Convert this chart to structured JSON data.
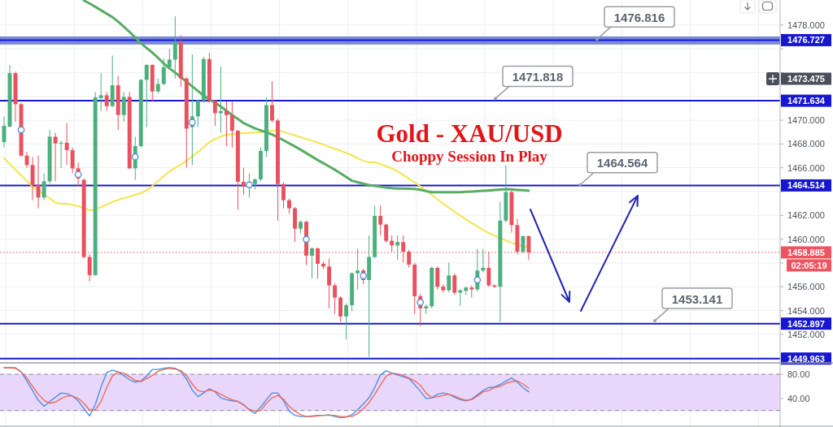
{
  "chart_data": [
    {
      "type": "candlestick",
      "title": "Gold - XAU/USD",
      "subtitle": "Choppy Session In Play",
      "categories": [
        null,
        null,
        null,
        null,
        null,
        null,
        null,
        null,
        null,
        null,
        null,
        null,
        null,
        null,
        null,
        null,
        null,
        null,
        null,
        null,
        null,
        null,
        null,
        null,
        null,
        null,
        null,
        null,
        null,
        null,
        null,
        null,
        null,
        null,
        null,
        null,
        null,
        null,
        null,
        null,
        null,
        null,
        null,
        null,
        null,
        null,
        null,
        null,
        null,
        null,
        null,
        null,
        null,
        null,
        null,
        null,
        null,
        null,
        null,
        null,
        null,
        null,
        null,
        null,
        null,
        null,
        null,
        null,
        null,
        null,
        null,
        null,
        null,
        null,
        null,
        null,
        null,
        null,
        null,
        null,
        null,
        null,
        null,
        null,
        null,
        null,
        null,
        null,
        null,
        null,
        null,
        null,
        null
      ],
      "ohlc": [
        [
          1468.16,
          1470.32,
          1467.7,
          1469.52
        ],
        [
          1469.45,
          1474.64,
          1469.41,
          1473.95
        ],
        [
          1473.95,
          1474.07,
          1469.86,
          1471.34
        ],
        [
          1471.34,
          1471.45,
          1466.91,
          1467.02
        ],
        [
          1467.02,
          1467.36,
          1466.0,
          1466.23
        ],
        [
          1466.23,
          1466.91,
          1463.27,
          1464.57
        ],
        [
          1464.57,
          1467.02,
          1462.59,
          1463.5
        ],
        [
          1463.5,
          1465.54,
          1463.27,
          1464.86
        ],
        [
          1464.86,
          1469.18,
          1464.64,
          1468.61
        ],
        [
          1468.61,
          1468.95,
          1464.86,
          1468.04
        ],
        [
          1468.04,
          1468.27,
          1466.0,
          1468.1
        ],
        [
          1468.1,
          1469.75,
          1466.23,
          1467.48
        ],
        [
          1467.48,
          1467.7,
          1465.54,
          1465.95
        ],
        [
          1465.95,
          1466.45,
          1464.41,
          1465.09
        ],
        [
          1464.98,
          1465.09,
          1458.39,
          1458.5
        ],
        [
          1458.5,
          1458.73,
          1456.45,
          1456.98
        ],
        [
          1456.98,
          1472.36,
          1456.91,
          1471.91
        ],
        [
          1471.86,
          1473.95,
          1470.77,
          1472.09
        ],
        [
          1472.09,
          1472.36,
          1470.77,
          1471.18
        ],
        [
          1471.18,
          1475.43,
          1471.11,
          1472.93
        ],
        [
          1472.93,
          1473.73,
          1469.18,
          1470.43
        ],
        [
          1470.43,
          1472.36,
          1469.86,
          1471.95
        ],
        [
          1471.95,
          1472.36,
          1465.9,
          1465.95
        ],
        [
          1465.95,
          1468.61,
          1464.98,
          1467.82
        ],
        [
          1467.82,
          1473.45,
          1467.7,
          1473.39
        ],
        [
          1473.39,
          1474.7,
          1469.41,
          1474.64
        ],
        [
          1474.64,
          1474.7,
          1471.57,
          1472.41
        ],
        [
          1472.41,
          1473.5,
          1472.25,
          1473.04
        ],
        [
          1473.04,
          1475.2,
          1472.93,
          1474.45
        ],
        [
          1474.45,
          1476.0,
          1474.41,
          1475.09
        ],
        [
          1475.09,
          1478.73,
          1473.5,
          1476.57
        ],
        [
          1476.57,
          1477.14,
          1472.82,
          1473.5
        ],
        [
          1473.5,
          1473.61,
          1466.0,
          1469.29
        ],
        [
          1469.41,
          1475.54,
          1466.23,
          1470.32
        ],
        [
          1470.32,
          1471.7,
          1469.41,
          1471.64
        ],
        [
          1471.64,
          1475.32,
          1471.45,
          1475.14
        ],
        [
          1475.14,
          1475.66,
          1471.45,
          1471.64
        ],
        [
          1471.64,
          1471.68,
          1469.52,
          1470.59
        ],
        [
          1470.59,
          1474.52,
          1468.95,
          1470.77
        ],
        [
          1470.77,
          1471.57,
          1467.82,
          1470.43
        ],
        [
          1470.43,
          1471.57,
          1467.7,
          1469.11
        ],
        [
          1469.11,
          1469.18,
          1462.48,
          1464.82
        ],
        [
          1464.82,
          1466.0,
          1463.73,
          1464.41
        ],
        [
          1464.41,
          1465.54,
          1463.5,
          1464.5
        ],
        [
          1464.64,
          1465.1,
          1464.18,
          1465.02
        ],
        [
          1465.02,
          1467.7,
          1464.86,
          1467.41
        ],
        [
          1467.41,
          1471.91,
          1466.9,
          1471.27
        ],
        [
          1471.27,
          1473.27,
          1469.8,
          1469.97
        ],
        [
          1469.97,
          1470.1,
          1461.56,
          1464.63
        ],
        [
          1464.63,
          1464.75,
          1462.59,
          1463.27
        ],
        [
          1463.27,
          1463.4,
          1462.13,
          1462.59
        ],
        [
          1462.59,
          1462.7,
          1459.75,
          1460.88
        ],
        [
          1460.88,
          1461.56,
          1460.5,
          1461.45
        ],
        [
          1461.45,
          1461.56,
          1457.81,
          1458.61
        ],
        [
          1458.61,
          1459.3,
          1456.68,
          1459.22
        ],
        [
          1459.22,
          1459.3,
          1456.68,
          1457.93
        ],
        [
          1457.93,
          1458.1,
          1457.5,
          1457.7
        ],
        [
          1457.7,
          1458.38,
          1454.18,
          1456.11
        ],
        [
          1456.11,
          1456.3,
          1453.72,
          1455.09
        ],
        [
          1455.09,
          1455.2,
          1453.04,
          1453.5
        ],
        [
          1453.5,
          1454.6,
          1451.56,
          1454.45
        ],
        [
          1454.45,
          1457.2,
          1453.95,
          1457.13
        ],
        [
          1457.13,
          1459.18,
          1455.77,
          1457.36
        ],
        [
          1457.36,
          1457.5,
          1456.22,
          1456.56
        ],
        [
          1456.56,
          1460.31,
          1450.09,
          1458.5
        ],
        [
          1458.5,
          1462.81,
          1458.4,
          1461.95
        ],
        [
          1461.95,
          1462.81,
          1460.31,
          1461.22
        ],
        [
          1461.22,
          1461.3,
          1459.7,
          1459.86
        ],
        [
          1459.86,
          1460.31,
          1458.95,
          1459.47
        ],
        [
          1459.47,
          1460.31,
          1458.27,
          1459.75
        ],
        [
          1459.75,
          1460.31,
          1458.04,
          1458.95
        ],
        [
          1458.95,
          1459.1,
          1457.59,
          1457.86
        ],
        [
          1457.86,
          1458.0,
          1453.72,
          1455.2
        ],
        [
          1455.2,
          1455.4,
          1452.7,
          1454.18
        ],
        [
          1454.18,
          1454.5,
          1453.72,
          1454.36
        ],
        [
          1454.36,
          1457.7,
          1454.2,
          1457.59
        ],
        [
          1457.59,
          1457.7,
          1455.77,
          1456.0
        ],
        [
          1456.0,
          1456.2,
          1455.5,
          1455.7
        ],
        [
          1455.7,
          1458.04,
          1455.54,
          1456.95
        ],
        [
          1456.95,
          1457.1,
          1455.31,
          1455.5
        ],
        [
          1455.5,
          1455.8,
          1454.4,
          1455.7
        ],
        [
          1455.65,
          1456.0,
          1455.3,
          1455.93
        ],
        [
          1455.93,
          1456.1,
          1455.09,
          1455.77
        ],
        [
          1455.77,
          1459.18,
          1455.6,
          1457.36
        ],
        [
          1457.36,
          1459.18,
          1457.2,
          1457.59
        ],
        [
          1457.59,
          1458.95,
          1456.0,
          1456.11
        ],
        [
          1456.11,
          1456.2,
          1455.9,
          1456.0
        ],
        [
          1456.0,
          1463.15,
          1453.04,
          1461.56
        ],
        [
          1461.56,
          1466.22,
          1461.4,
          1463.95
        ],
        [
          1463.95,
          1464.1,
          1460.54,
          1461.18
        ],
        [
          1461.18,
          1461.7,
          1458.72,
          1458.95
        ],
        [
          1458.95,
          1460.3,
          1458.8,
          1460.25
        ],
        [
          1460.25,
          1460.3,
          1458.27,
          1458.885
        ]
      ],
      "colors": [
        "#4caf7e",
        "#4caf7e",
        "#e8515d",
        "#e8515d",
        "#e8515d",
        "#e8515d",
        "#e8515d",
        "#4caf7e",
        "#4caf7e",
        "#e8515d",
        "#4caf7e",
        "#e8515d",
        "#e8515d",
        "#e8515d",
        "#e8515d",
        "#e8515d",
        "#4caf7e",
        "#4caf7e",
        "#e8515d",
        "#4caf7e",
        "#e8515d",
        "#4caf7e",
        "#e8515d",
        "#4caf7e",
        "#4caf7e",
        "#4caf7e",
        "#e8515d",
        "#4caf7e",
        "#4caf7e",
        "#4caf7e",
        "#4caf7e",
        "#e8515d",
        "#e8515d",
        "#4caf7e",
        "#4caf7e",
        "#4caf7e",
        "#e8515d",
        "#e8515d",
        "#4caf7e",
        "#e8515d",
        "#e8515d",
        "#e8515d",
        "#e8515d",
        "#4caf7e",
        "#4caf7e",
        "#4caf7e",
        "#4caf7e",
        "#e8515d",
        "#e8515d",
        "#e8515d",
        "#e8515d",
        "#e8515d",
        "#4caf7e",
        "#e8515d",
        "#4caf7e",
        "#e8515d",
        "#e8515d",
        "#e8515d",
        "#e8515d",
        "#e8515d",
        "#4caf7e",
        "#4caf7e",
        "#4caf7e",
        "#e8515d",
        "#4caf7e",
        "#4caf7e",
        "#e8515d",
        "#e8515d",
        "#e8515d",
        "#4caf7e",
        "#e8515d",
        "#e8515d",
        "#e8515d",
        "#e8515d",
        "#4caf7e",
        "#4caf7e",
        "#e8515d",
        "#e8515d",
        "#4caf7e",
        "#e8515d",
        "#4caf7e",
        "#4caf7e",
        "#e8515d",
        "#4caf7e",
        "#4caf7e",
        "#e8515d",
        "#e8515d",
        "#4caf7e",
        "#4caf7e",
        "#e8515d",
        "#e8515d",
        "#4caf7e",
        "#e8515d"
      ],
      "series": [
        {
          "type": "line",
          "color": "#f2e64a",
          "values": [
            1466.8,
            1466.32,
            1465.84,
            1465.36,
            1464.89,
            1464.41,
            1464.09,
            1463.77,
            1463.43,
            1463.08,
            1462.98,
            1462.98,
            1462.88,
            1462.77,
            1462.62,
            1462.42,
            1462.5,
            1462.7,
            1462.92,
            1463.13,
            1463.3,
            1463.44,
            1463.58,
            1463.72,
            1463.86,
            1464.11,
            1464.48,
            1464.88,
            1465.3,
            1465.69,
            1465.98,
            1466.27,
            1466.58,
            1466.95,
            1467.33,
            1467.74,
            1468.15,
            1468.42,
            1468.62,
            1468.79,
            1468.83,
            1468.87,
            1468.91,
            1468.93,
            1468.96,
            1468.98,
            1469.06,
            1469.12,
            1469.15,
            1469.02,
            1468.87,
            1468.72,
            1468.57,
            1468.42,
            1468.27,
            1468.11,
            1467.95,
            1467.77,
            1467.6,
            1467.43,
            1467.25,
            1467.05,
            1466.81,
            1466.58,
            1466.46,
            1466.46,
            1466.33,
            1466.13,
            1465.93,
            1465.7,
            1465.39,
            1465.08,
            1464.77,
            1464.43,
            1464.08,
            1463.72,
            1463.35,
            1462.99,
            1462.64,
            1462.29,
            1461.98,
            1461.67,
            1461.36,
            1461.07,
            1460.78,
            1460.5,
            1460.3,
            1460.09,
            1459.88,
            1459.71,
            1459.54,
            1459.4,
            1459.3
          ]
        },
        {
          "type": "line",
          "color": "#5aac64",
          "values": [
            null,
            null,
            null,
            null,
            null,
            null,
            null,
            null,
            null,
            null,
            null,
            null,
            null,
            null,
            1480.05,
            1479.81,
            1479.53,
            1479.24,
            1478.95,
            1478.66,
            1478.28,
            1477.86,
            1477.42,
            1476.94,
            1476.47,
            1476.07,
            1475.68,
            1475.24,
            1474.76,
            1474.36,
            1474.0,
            1473.62,
            1473.23,
            1472.84,
            1472.45,
            1472.06,
            1471.74,
            1471.47,
            1471.14,
            1470.79,
            1470.43,
            1470.1,
            1469.76,
            1469.53,
            1469.31,
            1469.14,
            1468.98,
            1468.8,
            1468.56,
            1468.31,
            1468.05,
            1467.79,
            1467.52,
            1467.23,
            1466.94,
            1466.65,
            1466.38,
            1466.11,
            1465.83,
            1465.53,
            1465.22,
            1464.91,
            1464.78,
            1464.66,
            1464.54,
            1464.47,
            1464.4,
            1464.33,
            1464.28,
            1464.26,
            1464.25,
            1464.23,
            1464.22,
            1464.15,
            1464.04,
            1463.94,
            1463.94,
            1463.94,
            1463.94,
            1463.94,
            1463.95,
            1463.98,
            1464.0,
            1464.03,
            1464.06,
            1464.09,
            1464.13,
            1464.17,
            1464.2,
            1464.18,
            1464.14,
            1464.11,
            1464.07
          ]
        },
        {
          "type": "scatter",
          "color": "#5a8fd8",
          "marker": "circle",
          "values": [
            null,
            null,
            null,
            1469.19,
            null,
            null,
            null,
            null,
            null,
            null,
            null,
            null,
            null,
            1465.43,
            null,
            null,
            null,
            null,
            null,
            null,
            null,
            null,
            null,
            1466.92,
            null,
            null,
            null,
            null,
            null,
            null,
            null,
            null,
            null,
            1469.82,
            null,
            null,
            null,
            null,
            null,
            null,
            null,
            null,
            null,
            1464.57,
            null,
            null,
            null,
            null,
            null,
            null,
            null,
            null,
            null,
            1459.98,
            null,
            null,
            null,
            null,
            null,
            null,
            null,
            null,
            null,
            1456.92,
            null,
            null,
            null,
            null,
            null,
            null,
            null,
            null,
            null,
            1454.69,
            null,
            null,
            null,
            null,
            null,
            null,
            null,
            null,
            null,
            1456.57,
            null,
            null,
            null,
            null,
            null,
            null,
            null,
            null,
            null
          ]
        }
      ],
      "ylim": [
        1449.6,
        1480.1
      ],
      "yticks": [
        {
          "value": 1452,
          "label": "1452.000"
        },
        {
          "value": 1454,
          "label": "1454.000"
        },
        {
          "value": 1456,
          "label": "1456.000"
        },
        {
          "value": 1458,
          "label": null
        },
        {
          "value": 1460,
          "label": "1460.000"
        },
        {
          "value": 1462,
          "label": "1462.000"
        },
        {
          "value": 1464,
          "label": null
        },
        {
          "value": 1466,
          "label": "1466.000"
        },
        {
          "value": 1468,
          "label": "1468.000"
        },
        {
          "value": 1470,
          "label": "1470.000"
        },
        {
          "value": 1472,
          "label": null
        },
        {
          "value": 1474,
          "label": null
        },
        {
          "value": 1476,
          "label": null
        },
        {
          "value": 1478,
          "label": "1478.000"
        }
      ],
      "grid": true,
      "tick_labels": "y",
      "bands": [
        {
          "axis": "y",
          "from": 1476.4,
          "to": 1477.0,
          "color": "#6b80d6"
        }
      ],
      "ref_lines": [
        {
          "axis": "y",
          "value": 1476.727,
          "label": "1476.727",
          "color": "#1717d2"
        },
        {
          "axis": "y",
          "value": 1471.634,
          "label": "1471.634",
          "color": "#1717d2"
        },
        {
          "axis": "y",
          "value": 1464.514,
          "label": "1464.514",
          "color": "#1717d2"
        },
        {
          "axis": "y",
          "value": 1458.885,
          "label": "1458.885",
          "color": "#ee5360",
          "line_style": "dotted"
        },
        {
          "axis": "y",
          "value": 1452.897,
          "label": "1452.897",
          "color": "#1717d2"
        },
        {
          "axis": "y",
          "value": 1449.963,
          "label": "1449.963",
          "color": "#1717d2"
        }
      ],
      "annotations": [
        {
          "text": "1476.816",
          "y": 1476.816
        },
        {
          "text": "1471.818",
          "y": 1471.818
        },
        {
          "text": "1464.564",
          "y": 1464.564
        },
        {
          "text": "1453.141",
          "y": 1453.141
        },
        "1473.475",
        "02:05:19"
      ]
    },
    {
      "type": "line",
      "categories": [
        null,
        null,
        null,
        null,
        null,
        null,
        null,
        null,
        null,
        null,
        null,
        null,
        null,
        null,
        null,
        null,
        null,
        null,
        null,
        null,
        null,
        null,
        null,
        null,
        null,
        null,
        null,
        null,
        null,
        null,
        null,
        null,
        null,
        null,
        null,
        null,
        null,
        null,
        null,
        null,
        null,
        null,
        null,
        null,
        null,
        null,
        null,
        null,
        null,
        null,
        null,
        null,
        null,
        null,
        null,
        null,
        null,
        null,
        null,
        null,
        null,
        null,
        null,
        null,
        null,
        null,
        null,
        null,
        null,
        null,
        null,
        null,
        null,
        null,
        null,
        null,
        null,
        null,
        null,
        null,
        null,
        null,
        null,
        null,
        null,
        null,
        null,
        null,
        null,
        null,
        null,
        null,
        null
      ],
      "series": [
        {
          "color": "#4a90e2",
          "values": [
            91,
            91,
            91,
            84,
            69,
            53,
            37,
            27,
            35,
            42,
            49,
            48,
            44,
            36,
            23,
            11,
            30,
            59,
            83,
            87,
            84,
            78,
            71,
            67,
            69,
            77,
            88,
            88,
            90,
            91,
            90,
            84,
            72,
            54,
            43,
            49,
            56,
            51,
            41,
            38,
            36,
            35,
            30,
            21,
            15,
            26,
            38,
            49,
            49,
            36,
            19,
            12,
            10,
            10,
            11,
            12,
            12,
            13,
            10,
            8,
            9,
            13,
            21,
            31,
            41,
            58,
            79,
            86,
            82,
            79,
            76,
            73,
            63,
            52,
            40,
            41,
            47,
            49,
            47,
            42,
            38,
            36,
            39,
            46,
            53,
            58,
            59,
            63,
            69,
            74,
            67,
            58,
            51
          ]
        },
        {
          "color": "#f06a5c",
          "values": [
            91,
            91,
            90,
            84,
            74,
            60,
            47,
            37,
            32,
            34,
            40,
            44,
            44,
            40,
            32,
            21,
            21,
            35,
            58,
            77,
            84,
            82,
            76,
            70,
            68,
            73,
            78,
            85,
            88,
            90,
            89,
            86,
            78,
            64,
            53,
            51,
            54,
            52,
            47,
            42,
            38,
            35,
            29,
            22,
            19,
            20,
            32,
            41,
            45,
            39,
            27,
            19,
            13,
            10,
            10,
            11,
            12,
            12,
            12,
            10,
            10,
            10,
            15,
            23,
            33,
            47,
            62,
            77,
            82,
            81,
            78,
            74,
            69,
            62,
            49,
            41,
            43,
            45,
            47,
            44,
            40,
            37,
            38,
            44,
            51,
            53,
            58,
            60,
            65,
            68,
            69,
            64,
            57
          ]
        }
      ],
      "ylim": [
        -6,
        99
      ],
      "yticks": [
        {
          "value": 40,
          "label": "40.00"
        },
        {
          "value": 80,
          "label": "80.00"
        }
      ],
      "grid": "x",
      "tick_labels": "y",
      "bands": [
        {
          "axis": "y",
          "from": 20,
          "to": 80,
          "color": "#e7d3fb"
        }
      ],
      "ref_lines": [
        {
          "axis": "y",
          "value": 80,
          "color": "#8e8e9e",
          "line_style": "dashed"
        },
        {
          "axis": "y",
          "value": 20,
          "color": "#8e8e9e",
          "line_style": "dashed"
        }
      ]
    }
  ]
}
